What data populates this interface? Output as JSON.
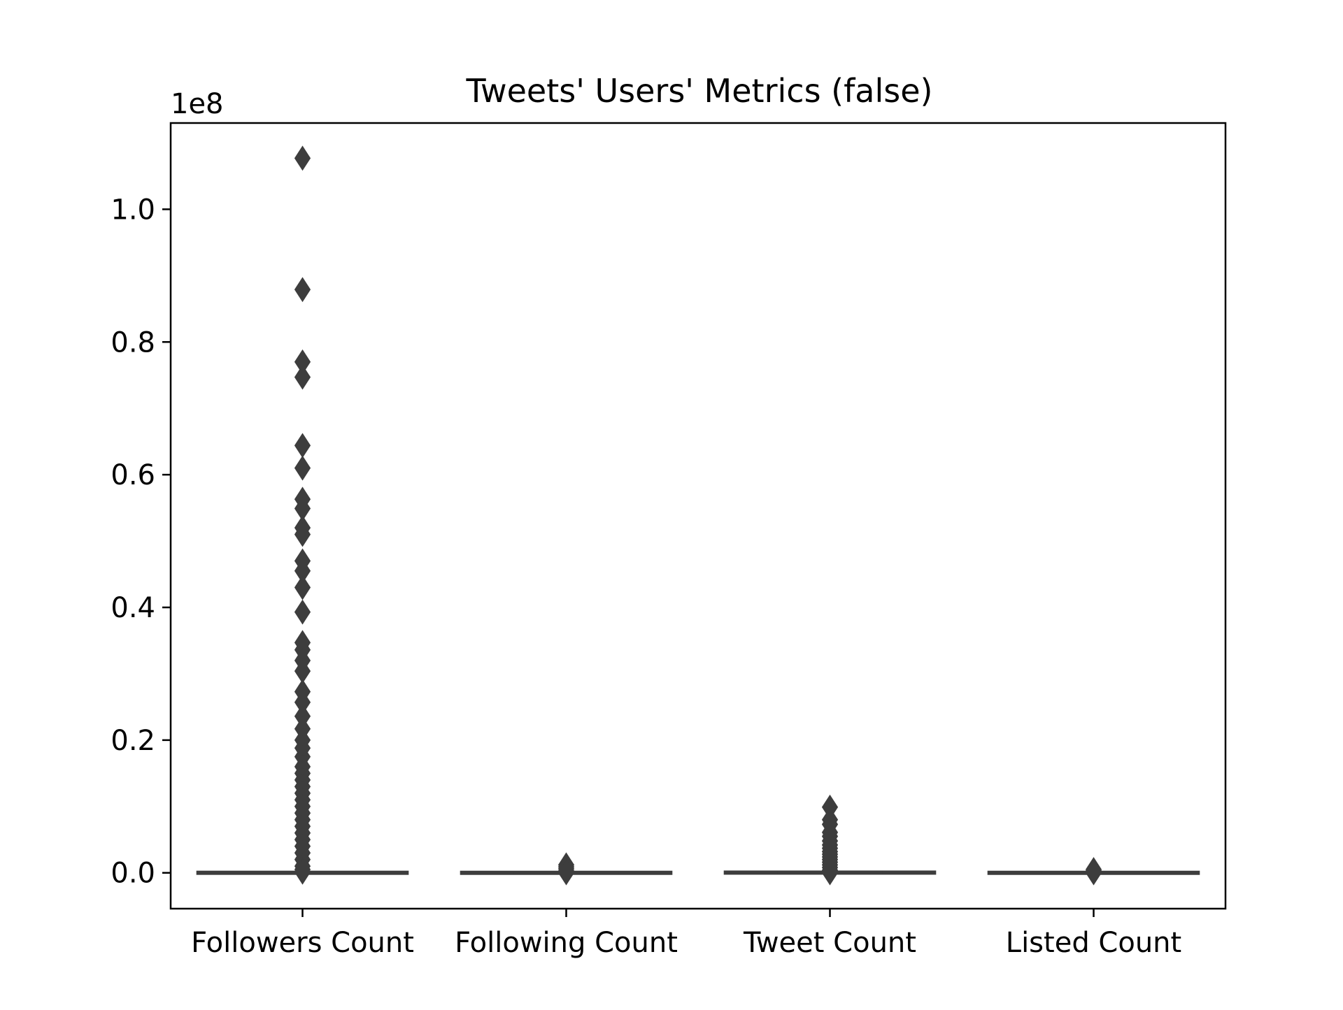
{
  "chart_data": {
    "type": "box",
    "title": "Tweets' Users' Metrics (false)",
    "xlabel": "",
    "ylabel": "",
    "y_offset_label": "1e8",
    "y_scale_factor": 100000000,
    "ylim": [
      -5400000,
      113000000
    ],
    "yticks": [
      0,
      20000000,
      40000000,
      60000000,
      80000000,
      100000000
    ],
    "ytick_labels": [
      "0.0",
      "0.2",
      "0.4",
      "0.6",
      "0.8",
      "1.0"
    ],
    "categories": [
      "Followers Count",
      "Following Count",
      "Tweet Count",
      "Listed Count"
    ],
    "grid": false,
    "box_color": "#3d3d3d",
    "boxes": [
      {
        "category": "Followers Count",
        "q1": 150,
        "median": 1000,
        "q3": 12000,
        "whisker_low": 0,
        "whisker_high": 35000,
        "outliers": [
          107700000,
          87900000,
          77000000,
          74700000,
          64400000,
          61000000,
          56300000,
          54900000,
          52000000,
          51000000,
          47000000,
          45500000,
          43000000,
          39300000,
          34700000,
          33600000,
          32000000,
          30400000,
          27300000,
          25700000,
          23600000,
          21700000,
          20000000,
          18800000,
          17500000,
          16000000,
          15000000,
          14000000,
          13000000,
          12000000,
          11000000,
          10000000,
          9000000,
          8000000,
          7000000,
          6000000,
          5000000,
          4000000,
          3000000,
          2000000,
          1000000,
          500000,
          200000,
          100000
        ]
      },
      {
        "category": "Following Count",
        "q1": 100,
        "median": 400,
        "q3": 1200,
        "whisker_low": 0,
        "whisker_high": 3000,
        "outliers": [
          1200000,
          900000,
          600000,
          300000,
          100000,
          0
        ]
      },
      {
        "category": "Tweet Count",
        "q1": 2000,
        "median": 15000,
        "q3": 60000,
        "whisker_low": 0,
        "whisker_high": 150000,
        "outliers": [
          9900000,
          8000000,
          7300000,
          6100000,
          5500000,
          4800000,
          4200000,
          3700000,
          3200000,
          2800000,
          2400000,
          2000000,
          1600000,
          1200000,
          800000,
          400000,
          200000,
          0
        ]
      },
      {
        "category": "Listed Count",
        "q1": 2,
        "median": 10,
        "q3": 50,
        "whisker_low": 0,
        "whisker_high": 150,
        "outliers": [
          500000,
          300000,
          150000,
          50000,
          0
        ]
      }
    ]
  }
}
